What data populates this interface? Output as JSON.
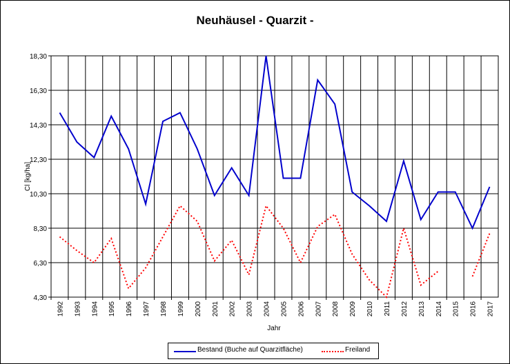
{
  "chart_data": {
    "type": "line",
    "title": "Neuhäusel - Quarzit -",
    "xlabel": "Jahr",
    "ylabel": "Cl [kg/ha]",
    "ylim": [
      4.3,
      18.3
    ],
    "yticks": [
      "4,30",
      "6,30",
      "8,30",
      "10,30",
      "12,30",
      "14,30",
      "16,30",
      "18,30"
    ],
    "ytick_values": [
      4.3,
      6.3,
      8.3,
      10.3,
      12.3,
      14.3,
      16.3,
      18.3
    ],
    "categories": [
      "1992",
      "1993",
      "1994",
      "1995",
      "1996",
      "1997",
      "1998",
      "1999",
      "2000",
      "2001",
      "2002",
      "2003",
      "2004",
      "2005",
      "2006",
      "2007",
      "2008",
      "2009",
      "2010",
      "2011",
      "2012",
      "2013",
      "2014",
      "2015",
      "2016",
      "2017"
    ],
    "grid": true,
    "legend_position": "bottom",
    "series": [
      {
        "name": "Bestand (Buche auf Quarzitfläche)",
        "color": "#0000cc",
        "style": "solid",
        "values": [
          15.0,
          13.3,
          12.4,
          14.8,
          12.9,
          9.7,
          14.5,
          15.0,
          12.9,
          10.2,
          11.8,
          10.2,
          18.3,
          11.2,
          11.2,
          16.9,
          15.5,
          10.4,
          9.6,
          8.7,
          12.2,
          8.8,
          10.4,
          10.4,
          8.3,
          10.7
        ]
      },
      {
        "name": "Freiland",
        "color": "#ff0000",
        "style": "dotted",
        "values": [
          7.8,
          7.0,
          6.3,
          7.7,
          4.8,
          6.0,
          7.8,
          9.6,
          8.7,
          6.4,
          7.6,
          5.6,
          9.6,
          8.3,
          6.3,
          8.4,
          9.1,
          6.8,
          5.3,
          4.3,
          8.3,
          5.0,
          5.8,
          null,
          5.5,
          8.0
        ]
      }
    ]
  }
}
